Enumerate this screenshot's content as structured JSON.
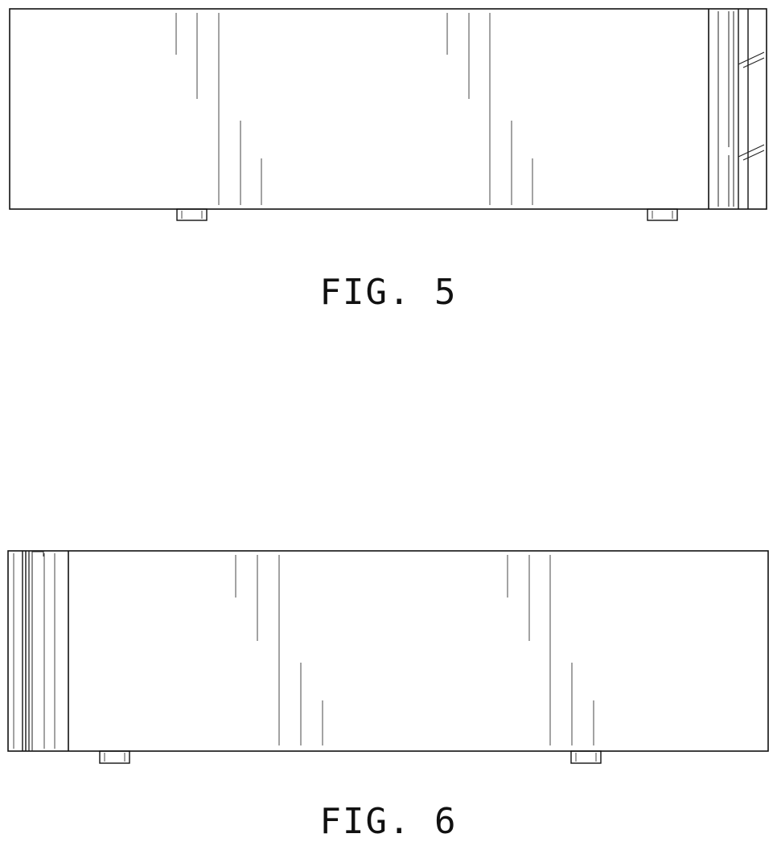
{
  "figures": [
    {
      "id": "fig5",
      "caption": "FIG. 5"
    },
    {
      "id": "fig6",
      "caption": "FIG. 6"
    }
  ],
  "colors": {
    "line": "#111111",
    "background": "#ffffff"
  }
}
